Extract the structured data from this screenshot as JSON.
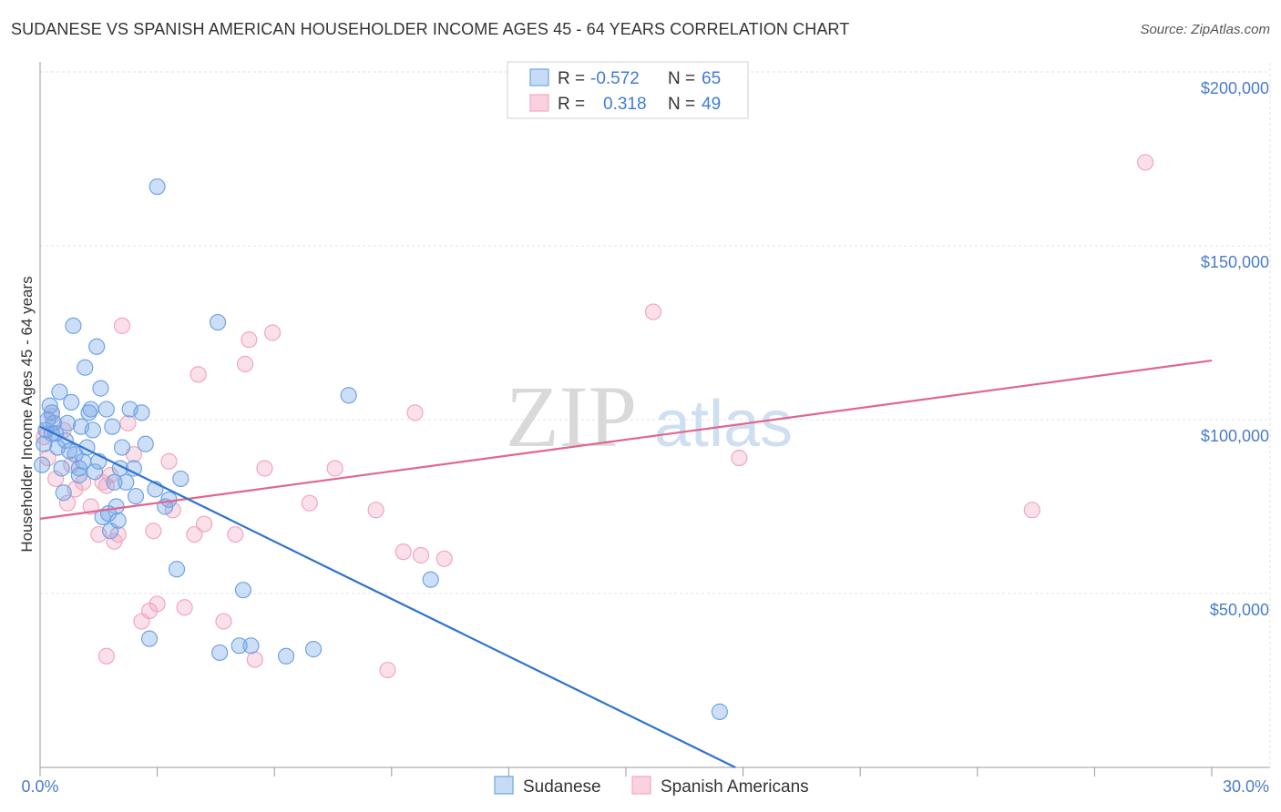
{
  "title": "SUDANESE VS SPANISH AMERICAN HOUSEHOLDER INCOME AGES 45 - 64 YEARS CORRELATION CHART",
  "source": "Source: ZipAtlas.com",
  "watermark": {
    "zip": "ZIP",
    "atlas": "atlas"
  },
  "legend_top": {
    "rows": [
      {
        "r_label": "R =",
        "r_value": "-0.572",
        "n_label": "N =",
        "n_value": "65"
      },
      {
        "r_label": "R =",
        "r_value": "0.318",
        "n_label": "N =",
        "n_value": "49"
      }
    ]
  },
  "chart_data": {
    "type": "scatter",
    "title": "SUDANESE VS SPANISH AMERICAN HOUSEHOLDER INCOME AGES 45 - 64 YEARS CORRELATION CHART",
    "xlabel": "",
    "ylabel": "Householder Income Ages 45 - 64 years",
    "xlim": [
      0,
      30
    ],
    "ylim": [
      0,
      200000
    ],
    "x_tick_labels": [
      "0.0%",
      "30.0%"
    ],
    "y_ticks": [
      50000,
      100000,
      150000,
      200000
    ],
    "y_tick_labels": [
      "$50,000",
      "$100,000",
      "$150,000",
      "$200,000"
    ],
    "grid": true,
    "colors": {
      "sudanese": "#6fa3e6",
      "spanish": "#f2a6c0",
      "sudanese_line": "#2f74d0",
      "spanish_line": "#e0668f"
    },
    "series": [
      {
        "name": "Sudanese",
        "r": -0.572,
        "n": 65,
        "trend": {
          "x": [
            0.0,
            17.8
          ],
          "y": [
            98000,
            0
          ]
        },
        "points": [
          [
            0.05,
            87000
          ],
          [
            0.1,
            93000
          ],
          [
            0.15,
            97000
          ],
          [
            0.2,
            100000
          ],
          [
            0.25,
            104000
          ],
          [
            0.3,
            102000
          ],
          [
            0.35,
            99000
          ],
          [
            0.4,
            96000
          ],
          [
            0.45,
            92000
          ],
          [
            0.5,
            108000
          ],
          [
            0.55,
            86000
          ],
          [
            0.6,
            79000
          ],
          [
            0.65,
            94000
          ],
          [
            0.7,
            99000
          ],
          [
            0.75,
            91000
          ],
          [
            0.8,
            105000
          ],
          [
            0.85,
            127000
          ],
          [
            0.9,
            90000
          ],
          [
            1.0,
            84000
          ],
          [
            1.05,
            98000
          ],
          [
            1.1,
            88000
          ],
          [
            1.15,
            115000
          ],
          [
            1.2,
            92000
          ],
          [
            1.3,
            103000
          ],
          [
            1.35,
            97000
          ],
          [
            1.4,
            85000
          ],
          [
            1.45,
            121000
          ],
          [
            1.5,
            88000
          ],
          [
            1.55,
            109000
          ],
          [
            1.6,
            72000
          ],
          [
            1.7,
            103000
          ],
          [
            1.75,
            73000
          ],
          [
            1.8,
            68000
          ],
          [
            1.85,
            98000
          ],
          [
            1.9,
            82000
          ],
          [
            1.95,
            75000
          ],
          [
            2.0,
            71000
          ],
          [
            2.1,
            92000
          ],
          [
            2.2,
            82000
          ],
          [
            2.3,
            103000
          ],
          [
            2.4,
            86000
          ],
          [
            2.45,
            78000
          ],
          [
            2.6,
            102000
          ],
          [
            2.7,
            93000
          ],
          [
            2.8,
            37000
          ],
          [
            2.95,
            80000
          ],
          [
            3.0,
            167000
          ],
          [
            3.2,
            75000
          ],
          [
            3.3,
            77000
          ],
          [
            3.5,
            57000
          ],
          [
            3.6,
            83000
          ],
          [
            4.55,
            128000
          ],
          [
            4.6,
            33000
          ],
          [
            5.1,
            35000
          ],
          [
            5.2,
            51000
          ],
          [
            5.4,
            35000
          ],
          [
            6.3,
            32000
          ],
          [
            7.0,
            34000
          ],
          [
            7.9,
            107000
          ],
          [
            10.0,
            54000
          ],
          [
            17.4,
            16000
          ],
          [
            0.3,
            96000
          ],
          [
            1.0,
            86000
          ],
          [
            1.25,
            102000
          ],
          [
            2.05,
            86000
          ]
        ]
      },
      {
        "name": "Spanish Americans",
        "r": 0.318,
        "n": 49,
        "trend": {
          "x": [
            0.0,
            30.0
          ],
          "y": [
            71500,
            117000
          ]
        },
        "points": [
          [
            0.1,
            95000
          ],
          [
            0.2,
            89000
          ],
          [
            0.3,
            101000
          ],
          [
            0.4,
            83000
          ],
          [
            0.6,
            97000
          ],
          [
            0.7,
            76000
          ],
          [
            0.8,
            87000
          ],
          [
            0.9,
            80000
          ],
          [
            1.1,
            82000
          ],
          [
            1.3,
            75000
          ],
          [
            1.5,
            67000
          ],
          [
            1.6,
            82000
          ],
          [
            1.7,
            81000
          ],
          [
            1.9,
            65000
          ],
          [
            2.0,
            67000
          ],
          [
            2.1,
            127000
          ],
          [
            2.25,
            99000
          ],
          [
            2.4,
            90000
          ],
          [
            2.6,
            42000
          ],
          [
            2.8,
            45000
          ],
          [
            2.9,
            68000
          ],
          [
            3.0,
            47000
          ],
          [
            3.3,
            88000
          ],
          [
            3.4,
            74000
          ],
          [
            3.7,
            46000
          ],
          [
            3.95,
            67000
          ],
          [
            4.05,
            113000
          ],
          [
            4.2,
            70000
          ],
          [
            4.7,
            42000
          ],
          [
            5.0,
            67000
          ],
          [
            5.25,
            116000
          ],
          [
            5.35,
            123000
          ],
          [
            5.5,
            31000
          ],
          [
            5.75,
            86000
          ],
          [
            5.95,
            125000
          ],
          [
            6.9,
            76000
          ],
          [
            7.55,
            86000
          ],
          [
            8.6,
            74000
          ],
          [
            8.9,
            28000
          ],
          [
            9.3,
            62000
          ],
          [
            9.6,
            102000
          ],
          [
            9.75,
            61000
          ],
          [
            10.35,
            60000
          ],
          [
            1.7,
            32000
          ],
          [
            15.7,
            131000
          ],
          [
            17.9,
            89000
          ],
          [
            25.4,
            74000
          ],
          [
            28.3,
            174000
          ],
          [
            1.8,
            84000
          ]
        ]
      }
    ]
  },
  "legend_bottom": [
    {
      "label": "Sudanese"
    },
    {
      "label": "Spanish Americans"
    }
  ]
}
